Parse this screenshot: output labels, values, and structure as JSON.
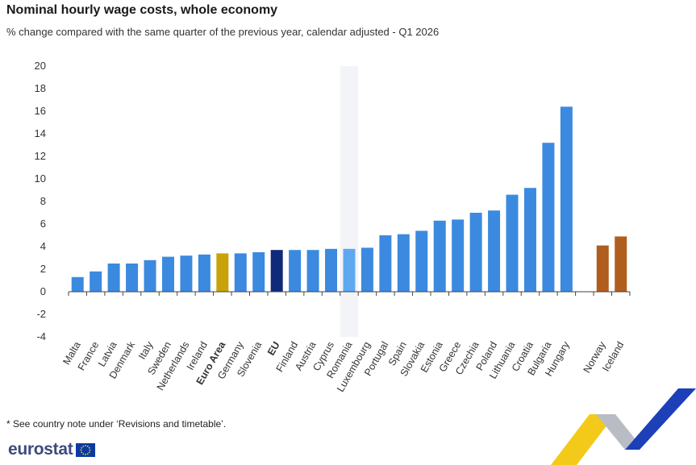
{
  "title": "Nominal hourly wage costs, whole economy",
  "subtitle": "% change compared with the same quarter of the previous year, calendar adjusted - Q1 2026",
  "footnote": "* See country note under ‘Revisions and timetable’.",
  "brand": {
    "name": "eurostat",
    "logo_icon": "eu-flag-icon"
  },
  "colors": {
    "country": "#3b8ae0",
    "euro_area": "#c9a20a",
    "eu": "#0e2a78",
    "highlight": "#5fa8f0",
    "efta": "#b05e1e",
    "highlight_band": "#f3f4f8"
  },
  "chart_data": {
    "type": "bar",
    "title": "Nominal hourly wage costs, whole economy",
    "subtitle": "% change compared with the same quarter of the previous year, calendar adjusted - Q1 2026",
    "xlabel": "",
    "ylabel": "",
    "ylim": [
      -4,
      20
    ],
    "yticks": [
      "20",
      "18",
      "16",
      "14",
      "12",
      "10",
      "8",
      "6",
      "4",
      "2",
      "0",
      "-2",
      "-4"
    ],
    "grid": false,
    "legend": "none",
    "highlighted_category": "Romania",
    "categories": [
      "Malta",
      "France",
      "Latvia",
      "Denmark",
      "Italy",
      "Sweden",
      "Netherlands",
      "Ireland",
      "Euro Area",
      "Germany",
      "Slovenia",
      "EU",
      "Finland",
      "Austria",
      "Cyprus",
      "Romania",
      "Luxembourg",
      "Portugal",
      "Spain",
      "Slovakia",
      "Estonia",
      "Greece",
      "Czechia",
      "Poland",
      "Lithuania",
      "Croatia",
      "Bulgaria",
      "Hungary",
      "Norway",
      "Iceland"
    ],
    "values": [
      1.3,
      1.8,
      2.5,
      2.5,
      2.8,
      3.1,
      3.2,
      3.3,
      3.4,
      3.4,
      3.5,
      3.7,
      3.7,
      3.7,
      3.8,
      3.8,
      3.9,
      5.0,
      5.1,
      5.4,
      6.3,
      6.4,
      7.0,
      7.2,
      8.6,
      9.2,
      13.2,
      16.4,
      4.1,
      4.9
    ],
    "groups": [
      "country",
      "country",
      "country",
      "country",
      "country",
      "country",
      "country",
      "country",
      "euro_area",
      "country",
      "country",
      "eu",
      "country",
      "country",
      "country",
      "highlight",
      "country",
      "country",
      "country",
      "country",
      "country",
      "country",
      "country",
      "country",
      "country",
      "country",
      "country",
      "country",
      "efta",
      "efta"
    ],
    "bold_labels": [
      "Euro Area",
      "EU"
    ]
  }
}
